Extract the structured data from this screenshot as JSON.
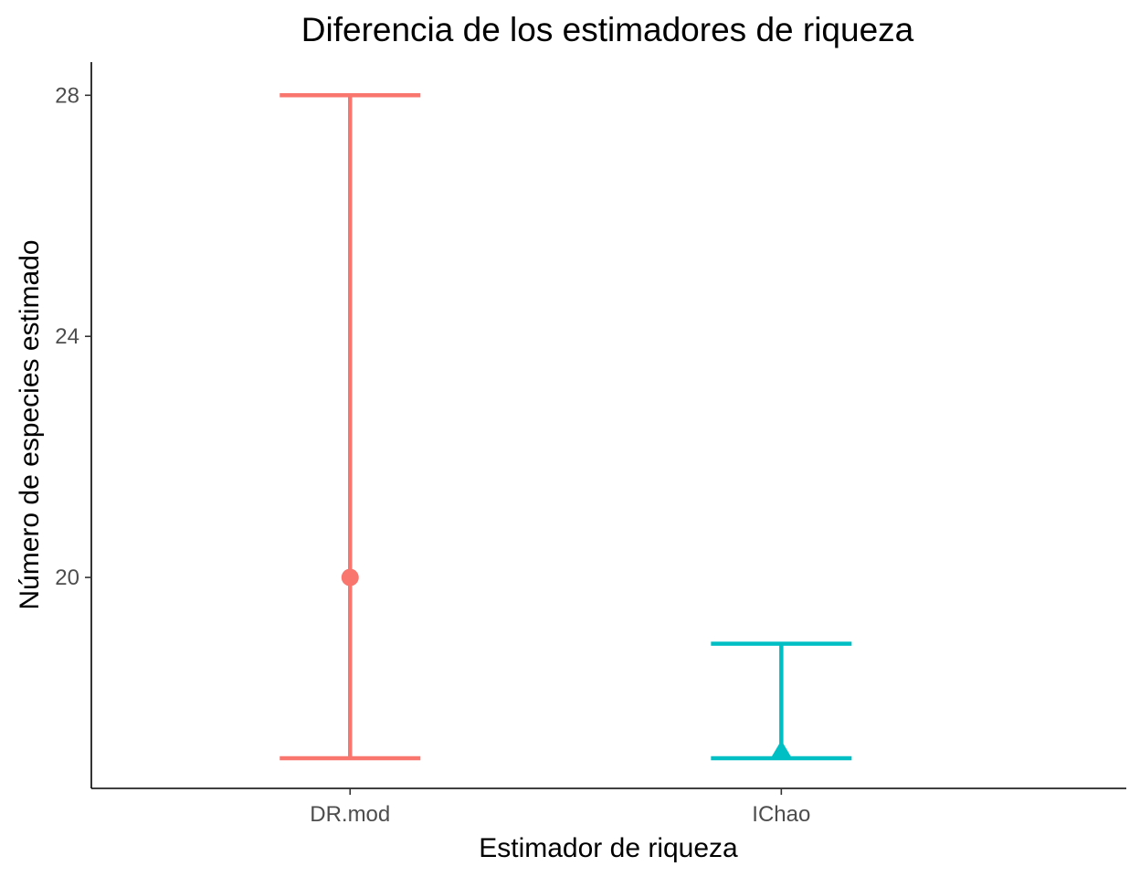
{
  "chart_data": {
    "type": "errorbar",
    "title": "Diferencia de los estimadores de riqueza",
    "xlabel": "Estimador de riqueza",
    "ylabel": "Número de especies estimado",
    "categories": [
      "DR.mod",
      "IChao"
    ],
    "y_ticks": [
      20,
      24,
      28
    ],
    "ylim": [
      16.5,
      28.55
    ],
    "grid": false,
    "legend": "none",
    "series": [
      {
        "category": "DR.mod",
        "estimate": 20.0,
        "lower": 17.0,
        "upper": 28.0,
        "shape": "circle",
        "color": "#F8766D"
      },
      {
        "category": "IChao",
        "estimate": 17.1,
        "lower": 17.0,
        "upper": 18.9,
        "shape": "triangle",
        "color": "#00BFC4"
      }
    ]
  }
}
